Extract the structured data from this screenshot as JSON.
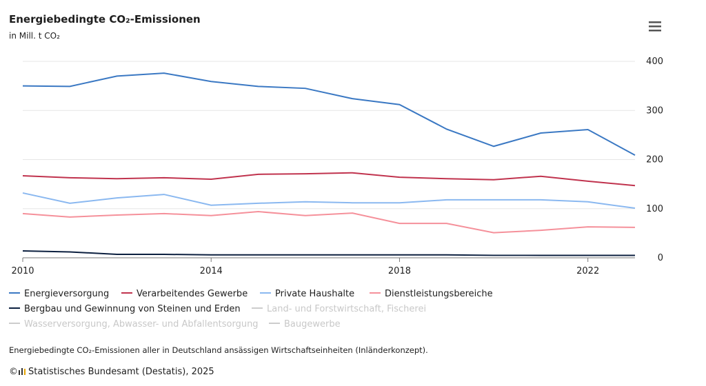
{
  "chart_data": {
    "type": "line",
    "title": "Energiebedingte CO₂-Emissionen",
    "subtitle": "in Mill. t CO₂",
    "x": [
      2010,
      2011,
      2012,
      2013,
      2014,
      2015,
      2016,
      2017,
      2018,
      2019,
      2020,
      2021,
      2022,
      2023
    ],
    "xlim": [
      2010,
      2023
    ],
    "xticks": [
      2010,
      2014,
      2018,
      2022
    ],
    "ylim": [
      0,
      400
    ],
    "yticks": [
      0,
      100,
      200,
      300,
      400
    ],
    "grid": true,
    "series": [
      {
        "name": "Energieversorgung",
        "color": "#3a78c3",
        "values": [
          350,
          349,
          370,
          376,
          359,
          349,
          345,
          324,
          312,
          262,
          227,
          254,
          261,
          209
        ]
      },
      {
        "name": "Verarbeitendes Gewerbe",
        "color": "#c0324d",
        "values": [
          167,
          163,
          161,
          163,
          160,
          170,
          171,
          173,
          164,
          161,
          159,
          166,
          156,
          147
        ]
      },
      {
        "name": "Private Haushalte",
        "color": "#8ab8f0",
        "values": [
          132,
          111,
          122,
          129,
          107,
          111,
          114,
          112,
          112,
          118,
          118,
          118,
          114,
          101
        ]
      },
      {
        "name": "Dienstleistungsbereiche",
        "color": "#f5909a",
        "values": [
          90,
          83,
          87,
          90,
          86,
          94,
          86,
          91,
          70,
          70,
          51,
          56,
          63,
          62
        ]
      },
      {
        "name": "Bergbau und Gewinnung von Steinen und Erden",
        "color": "#0b1f3f",
        "values": [
          14,
          12,
          7,
          7,
          6,
          6,
          6,
          6,
          6,
          6,
          5,
          5,
          5,
          5
        ]
      },
      {
        "name": "Land- und Forstwirtschaft, Fischerei",
        "color": "#cccccc",
        "visible": false,
        "values": [
          null,
          null,
          null,
          null,
          null,
          null,
          null,
          null,
          null,
          null,
          null,
          null,
          null,
          null
        ]
      },
      {
        "name": "Wasserversorgung, Abwasser- und Abfallentsorgung",
        "color": "#cccccc",
        "visible": false,
        "values": [
          null,
          null,
          null,
          null,
          null,
          null,
          null,
          null,
          null,
          null,
          null,
          null,
          null,
          null
        ]
      },
      {
        "name": "Baugewerbe",
        "color": "#cccccc",
        "visible": false,
        "values": [
          null,
          null,
          null,
          null,
          null,
          null,
          null,
          null,
          null,
          null,
          null,
          null,
          null,
          null
        ]
      }
    ],
    "note": "Energiebedingte CO₂-Emissionen aller in Deutschland ansässigen Wirtschaftseinheiten (Inländerkonzept).",
    "copyright": "©",
    "source": "Statistisches Bundesamt (Destatis), 2025"
  }
}
